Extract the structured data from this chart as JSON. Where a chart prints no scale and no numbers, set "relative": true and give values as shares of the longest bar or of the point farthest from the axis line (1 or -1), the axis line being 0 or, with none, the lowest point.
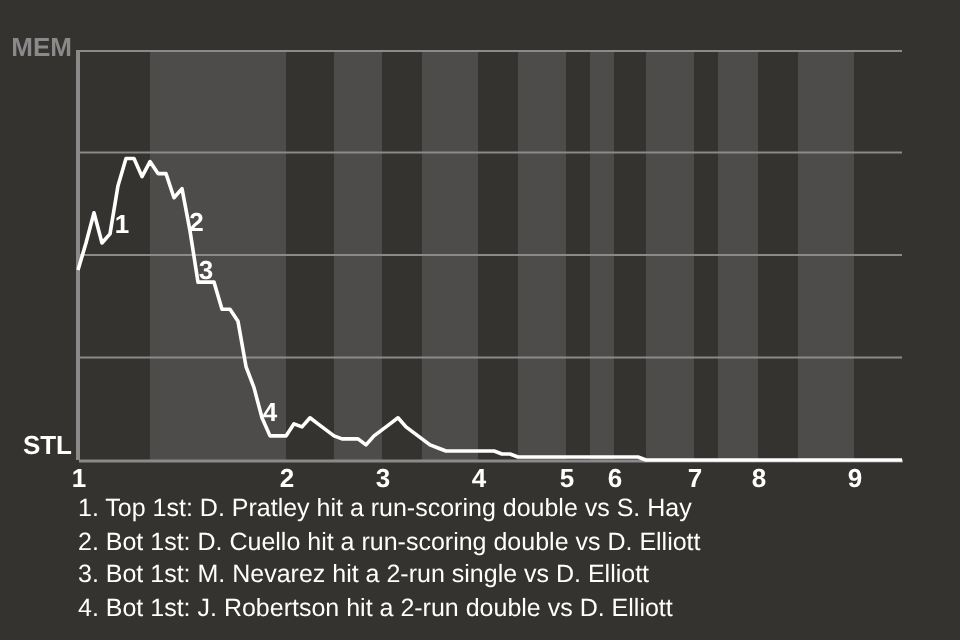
{
  "chart_data": {
    "type": "line",
    "relative": true,
    "categories": [
      "1",
      null,
      null,
      null,
      null,
      null,
      null,
      null,
      null,
      null,
      null,
      null,
      null,
      null,
      null,
      null,
      null,
      null,
      null,
      null,
      null,
      null,
      null,
      null,
      null,
      null,
      "2",
      null,
      null,
      null,
      null,
      null,
      null,
      null,
      null,
      null,
      null,
      null,
      "3",
      null,
      null,
      null,
      null,
      null,
      null,
      null,
      null,
      null,
      null,
      null,
      "4",
      null,
      null,
      null,
      null,
      null,
      null,
      null,
      null,
      null,
      null,
      "5",
      null,
      null,
      null,
      null,
      null,
      "6",
      null,
      null,
      null,
      null,
      null,
      null,
      null,
      null,
      null,
      "7",
      null,
      null,
      null,
      null,
      null,
      null,
      null,
      "8",
      null,
      null,
      null,
      null,
      null,
      null,
      null,
      null,
      null,
      null,
      null,
      "9",
      null,
      null,
      null,
      null,
      null,
      null
    ],
    "marker": "none",
    "line_style": "solid",
    "ref_lines": [
      {
        "axis": "y",
        "value": 0.34,
        "color": "#8a8a8a"
      },
      {
        "axis": "y",
        "value": 0.68,
        "color": "#8a8a8a"
      },
      {
        "axis": "y",
        "value": 1.02,
        "color": "#8a8a8a"
      }
    ],
    "series": [
      {
        "color": "#ffffff",
        "values": [
          0.63,
          0.72,
          0.82,
          0.72,
          0.75,
          0.91,
          1,
          1,
          0.94,
          0.99,
          0.95,
          0.95,
          0.87,
          0.9,
          0.76,
          0.59,
          0.59,
          0.59,
          0.5,
          0.5,
          0.46,
          0.31,
          0.24,
          0.14,
          0.08,
          0.08,
          0.08,
          0.12,
          0.11,
          0.14,
          0.12,
          0.1,
          0.08,
          0.07,
          0.07,
          0.07,
          0.05,
          0.08,
          0.1,
          0.12,
          0.14,
          0.11,
          0.09,
          0.07,
          0.05,
          0.04,
          0.03,
          0.03,
          0.03,
          0.03,
          0.03,
          0.03,
          0.03,
          0.02,
          0.02,
          0.01,
          0.01,
          0.01,
          0.01,
          0.01,
          0.01,
          0.01,
          0.01,
          0.01,
          0.01,
          0.01,
          0.01,
          0.01,
          0.01,
          0.01,
          0.01,
          0,
          0,
          0,
          0,
          0,
          0,
          0,
          0,
          0,
          0,
          0,
          0,
          0,
          0,
          0,
          0,
          0,
          0,
          0,
          0,
          0,
          0,
          0,
          0,
          0,
          0,
          0,
          0,
          0,
          0,
          0,
          0,
          0
        ]
      }
    ],
    "annotations": [
      "MEM",
      "STL",
      "1",
      "2",
      "3",
      "4",
      "1. Top 1st: D. Pratley hit a run-scoring double vs S. Hay",
      "2. Bot 1st: D. Cuello hit a run-scoring double vs D. Elliott",
      "3. Bot 1st: M. Nevarez hit a 2-run single vs D. Elliott",
      "4. Bot 1st: J. Robertson hit a 2-run double vs D. Elliott"
    ]
  }
}
